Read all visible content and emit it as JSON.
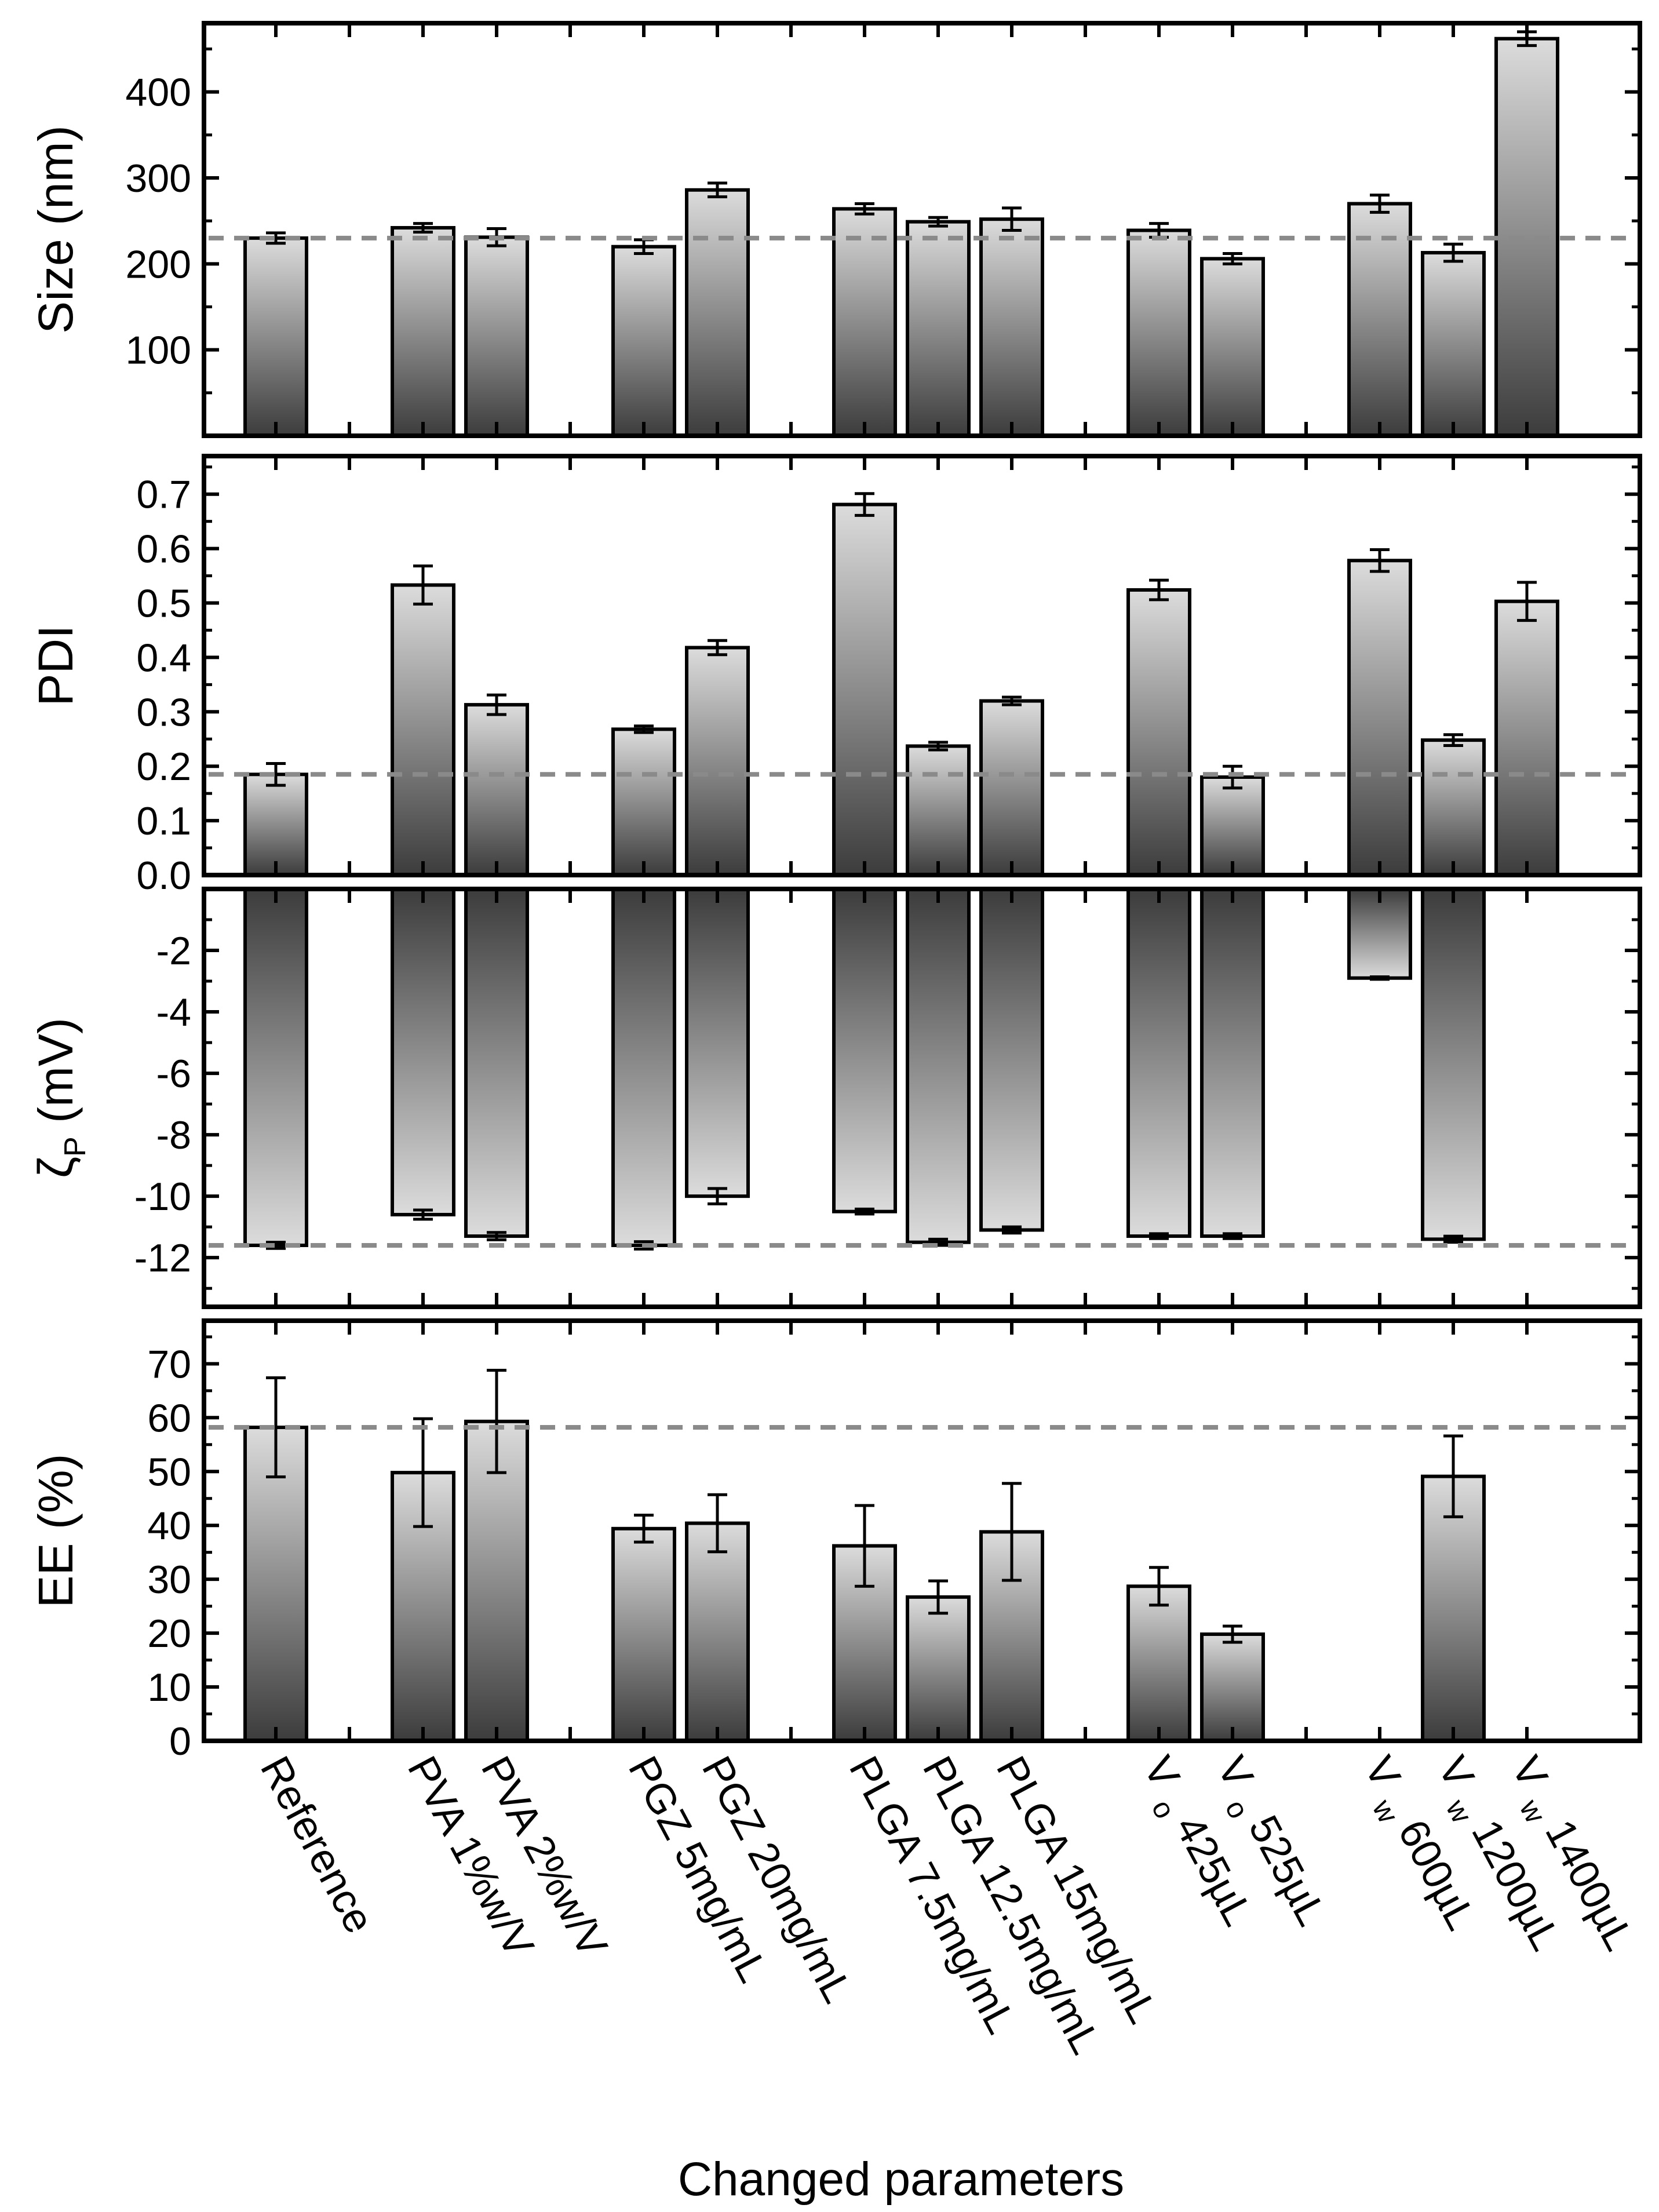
{
  "colors": {
    "bar_light": "#dcdcdc",
    "bar_dark": "#3c3c3c",
    "reference_line": "#8a8a8a",
    "axis": "#000000"
  },
  "chart_data": {
    "type": "bar",
    "xlabel": "Changed parameters",
    "categories": [
      {
        "main": "Reference",
        "sub": ""
      },
      {
        "main": "PVA 1%w/V",
        "sub": ""
      },
      {
        "main": "PVA 2%w/V",
        "sub": ""
      },
      {
        "main": "PGZ 5mg/mL",
        "sub": ""
      },
      {
        "main": "PGZ 20mg/mL",
        "sub": ""
      },
      {
        "main": "PLGA 7.5mg/mL",
        "sub": ""
      },
      {
        "main": "PLGA 12.5mg/mL",
        "sub": ""
      },
      {
        "main": "PLGA 15mg/mL",
        "sub": ""
      },
      {
        "main": "V  425µL",
        "sub": "o"
      },
      {
        "main": "V  525µL",
        "sub": "o"
      },
      {
        "main": "V  600µL",
        "sub": "w"
      },
      {
        "main": "V  1200µL",
        "sub": "w"
      },
      {
        "main": "V  1400µL",
        "sub": "w"
      }
    ],
    "slots": [
      1,
      3,
      4,
      6,
      7,
      9,
      10,
      11,
      13,
      14,
      16,
      17,
      18
    ],
    "slot_count": 18,
    "panels": [
      {
        "id": "size",
        "ylabel": "Size (nm)",
        "ylim": [
          0,
          480
        ],
        "ticks": [
          "100",
          "200",
          "300",
          "400"
        ],
        "tick_values": [
          100,
          200,
          300,
          400
        ],
        "minor_ticks": [
          50,
          150,
          250,
          350,
          450
        ],
        "reference_value": 230,
        "values": [
          230,
          242,
          231,
          220,
          286,
          264,
          249,
          252,
          239,
          206,
          270,
          213,
          462
        ],
        "errors": [
          6,
          5,
          10,
          8,
          8,
          6,
          5,
          13,
          8,
          6,
          10,
          10,
          8
        ]
      },
      {
        "id": "pdi",
        "ylabel": "PDI",
        "ylim": [
          0,
          0.77
        ],
        "ticks": [
          "0.0",
          "0.1",
          "0.2",
          "0.3",
          "0.4",
          "0.5",
          "0.6",
          "0.7"
        ],
        "tick_values": [
          0,
          0.1,
          0.2,
          0.3,
          0.4,
          0.5,
          0.6,
          0.7
        ],
        "minor_ticks": [
          0.05,
          0.15,
          0.25,
          0.35,
          0.45,
          0.55,
          0.65,
          0.75
        ],
        "reference_value": 0.185,
        "values": [
          0.185,
          0.533,
          0.313,
          0.268,
          0.418,
          0.681,
          0.237,
          0.32,
          0.524,
          0.18,
          0.578,
          0.248,
          0.503
        ],
        "errors": [
          0.02,
          0.035,
          0.018,
          0.006,
          0.013,
          0.02,
          0.007,
          0.007,
          0.018,
          0.02,
          0.02,
          0.01,
          0.035
        ]
      },
      {
        "id": "zeta",
        "ylabel": "ζ (mV)",
        "ylabel_sub": "P",
        "ylim": [
          -13.6,
          0
        ],
        "ticks": [
          "-12",
          "-10",
          "-8",
          "-6",
          "-4",
          "-2"
        ],
        "tick_values": [
          -12,
          -10,
          -8,
          -6,
          -4,
          -2
        ],
        "minor_ticks": [
          -13,
          -11,
          -9,
          -7,
          -5,
          -3,
          -1
        ],
        "reference_value": -11.6,
        "values": [
          -11.6,
          -10.6,
          -11.3,
          -11.6,
          -10.0,
          -10.5,
          -11.5,
          -11.1,
          -11.3,
          -11.3,
          -2.9,
          -11.4,
          null
        ],
        "errors": [
          0.1,
          0.15,
          0.12,
          0.12,
          0.25,
          0.08,
          0.1,
          0.1,
          0.08,
          0.08,
          0.04,
          0.1,
          null
        ]
      },
      {
        "id": "ee",
        "ylabel": "EE (%)",
        "ylim": [
          0,
          78
        ],
        "ticks": [
          "0",
          "10",
          "20",
          "30",
          "40",
          "50",
          "60",
          "70"
        ],
        "tick_values": [
          0,
          10,
          20,
          30,
          40,
          50,
          60,
          70
        ],
        "minor_ticks": [
          5,
          15,
          25,
          35,
          45,
          55,
          65,
          75
        ],
        "reference_value": 58.2,
        "values": [
          58.2,
          49.8,
          59.3,
          39.4,
          40.4,
          36.2,
          26.7,
          38.8,
          28.7,
          19.8,
          null,
          49.1,
          null
        ],
        "errors": [
          9.2,
          10,
          9.5,
          2.5,
          5.3,
          7.5,
          3,
          9,
          3.5,
          1.5,
          null,
          7.5,
          null
        ]
      }
    ]
  }
}
